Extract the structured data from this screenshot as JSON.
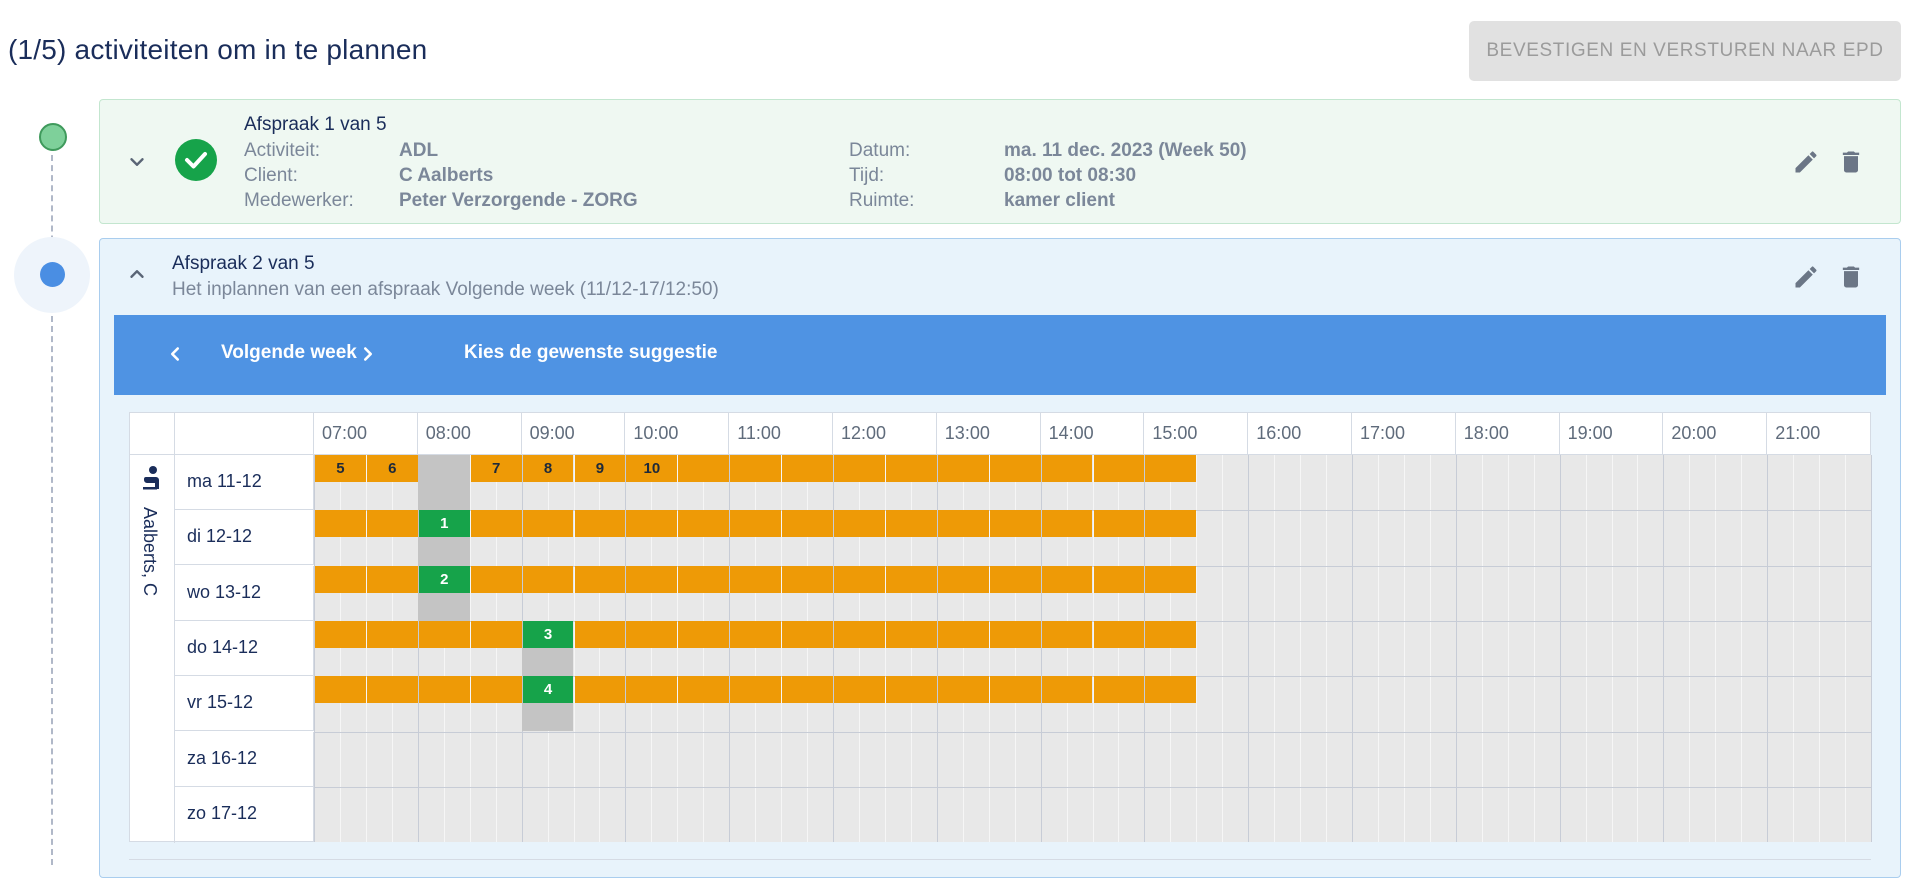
{
  "header": {
    "title": "(1/5) activiteiten om in te plannen",
    "confirm_button": "BEVESTIGEN EN VERSTUREN NAAR EPD"
  },
  "card1": {
    "heading": "Afspraak 1 van 5",
    "labels": {
      "activity": "Activiteit:",
      "client": "Client:",
      "employee": "Medewerker:",
      "date": "Datum:",
      "time": "Tijd:",
      "room": "Ruimte:"
    },
    "values": {
      "activity": "ADL",
      "client": "C Aalberts",
      "employee": "Peter Verzorgende - ZORG",
      "date": "ma. 11 dec. 2023 (Week 50)",
      "time": "08:00 tot 08:30",
      "room": "kamer client"
    }
  },
  "card2": {
    "heading": "Afspraak 2 van 5",
    "subtitle": "Het inplannen van een afspraak Volgende week (11/12-17/12:50)",
    "nav": {
      "week_label": "Volgende week",
      "instruction": "Kies de gewenste suggestie"
    }
  },
  "schedule": {
    "resource": "Aalberts, C",
    "hours": [
      "07:00",
      "08:00",
      "09:00",
      "10:00",
      "11:00",
      "12:00",
      "13:00",
      "14:00",
      "15:00",
      "16:00",
      "17:00",
      "18:00",
      "19:00",
      "20:00",
      "21:00"
    ],
    "days": [
      "ma 11-12",
      "di 12-12",
      "wo 13-12",
      "do 14-12",
      "vr 15-12",
      "za 16-12",
      "zo 17-12"
    ],
    "suggestions": [
      {
        "label": "5",
        "day": 0,
        "start": "07:00",
        "type": "available"
      },
      {
        "label": "6",
        "day": 0,
        "start": "07:30",
        "type": "available"
      },
      {
        "label": "7",
        "day": 0,
        "start": "08:30",
        "type": "available"
      },
      {
        "label": "8",
        "day": 0,
        "start": "09:00",
        "type": "available"
      },
      {
        "label": "9",
        "day": 0,
        "start": "09:30",
        "type": "available"
      },
      {
        "label": "10",
        "day": 0,
        "start": "10:00",
        "type": "available"
      },
      {
        "label": "1",
        "day": 1,
        "start": "08:00",
        "type": "best"
      },
      {
        "label": "2",
        "day": 2,
        "start": "08:00",
        "type": "best"
      },
      {
        "label": "3",
        "day": 3,
        "start": "09:00",
        "type": "best"
      },
      {
        "label": "4",
        "day": 4,
        "start": "09:00",
        "type": "best"
      }
    ],
    "available_window": {
      "start": "07:00",
      "end": "15:30",
      "days": [
        0,
        1,
        2,
        3,
        4
      ]
    },
    "existing_appointments": [
      {
        "day": 0,
        "start": "08:00",
        "end": "08:30"
      },
      {
        "day": 1,
        "start": "08:00",
        "end": "08:30"
      },
      {
        "day": 2,
        "start": "08:00",
        "end": "08:30"
      },
      {
        "day": 3,
        "start": "09:00",
        "end": "09:30"
      },
      {
        "day": 4,
        "start": "09:00",
        "end": "09:30"
      }
    ]
  },
  "colors": {
    "available": "#ee9a06",
    "best": "#16a34a",
    "booked": "#c4c4c4",
    "accent": "#4f93e3"
  },
  "icons": [
    "chevron-down-icon",
    "check-circle-icon",
    "edit-icon",
    "delete-icon",
    "chevron-up-icon",
    "chevron-left-icon",
    "chevron-right-icon",
    "person-icon"
  ]
}
